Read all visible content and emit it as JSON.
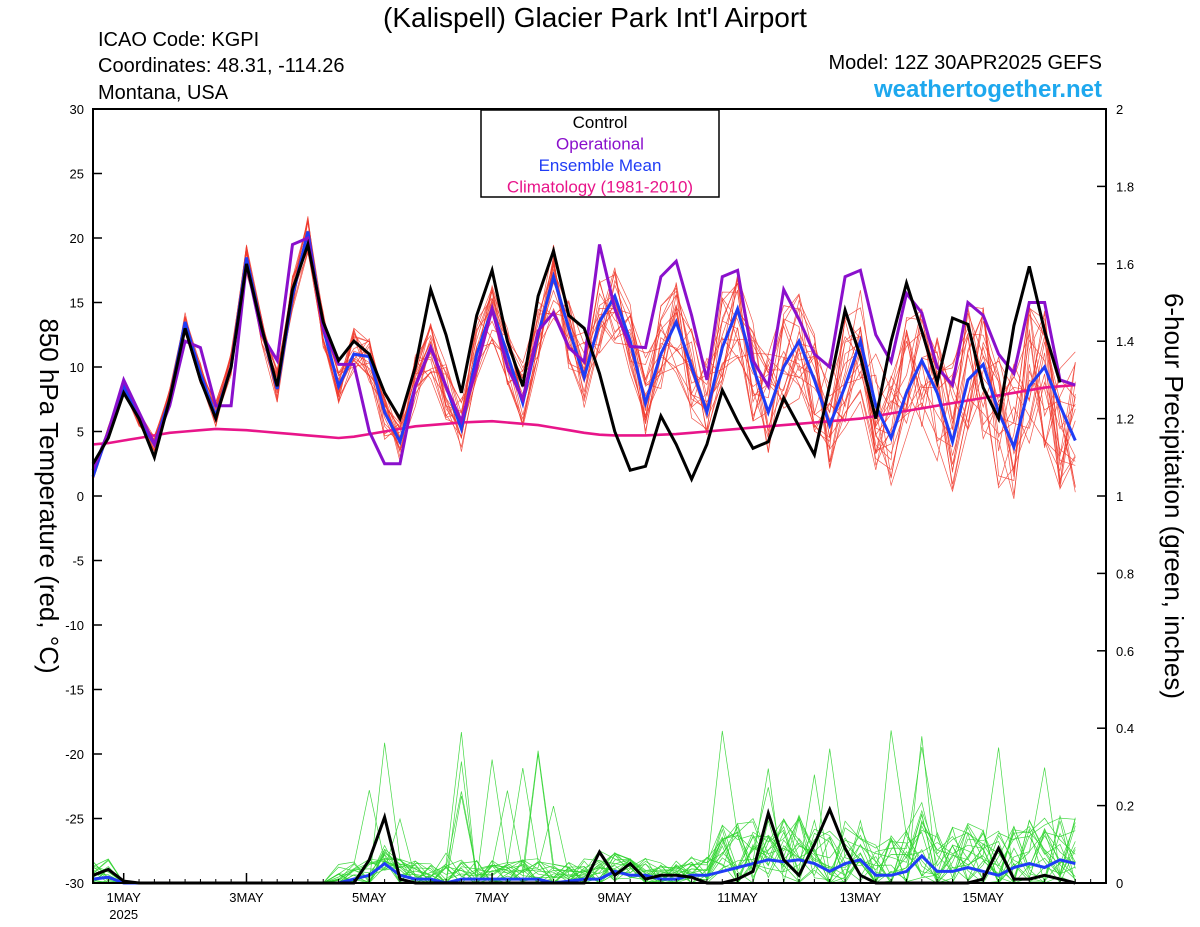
{
  "header": {
    "title": "(Kalispell) Glacier Park Int'l Airport",
    "icao": "ICAO Code: KGPI",
    "coordinates": "Coordinates: 48.31, -114.26",
    "region": "Montana, USA",
    "model": "Model: 12Z 30APR2025 GEFS",
    "site": "weathertogether.net"
  },
  "colors": {
    "control": "#000000",
    "operational": "#8a10cc",
    "ensemble_mean": "#1f3cf5",
    "climatology": "#e8158a",
    "members_temp": "#f0392d",
    "members_precip": "#2fd42f",
    "site": "#1ea8ee"
  },
  "legend": [
    {
      "label": "Control",
      "color": "#000000"
    },
    {
      "label": "Operational",
      "color": "#8a10cc"
    },
    {
      "label": "Ensemble Mean",
      "color": "#1f3cf5"
    },
    {
      "label": "Climatology (1981-2010)",
      "color": "#e8158a"
    }
  ],
  "chart_data": {
    "type": "line",
    "title": "(Kalispell) Glacier Park Int'l Airport",
    "ylabel_left": "850 hPa Temperature (red, °C)",
    "ylabel_right": "6-hour Precipitation (green, inches)",
    "ylim_left": [
      -30,
      30
    ],
    "ylim_right": [
      0,
      2
    ],
    "yticks_left": [
      "30",
      "25",
      "20",
      "15",
      "10",
      "5",
      "0",
      "-5",
      "-10",
      "-15",
      "-20",
      "-25",
      "-30"
    ],
    "yticks_right": [
      "2",
      "1.8",
      "1.6",
      "1.4",
      "1.2",
      "1",
      "0.8",
      "0.6",
      "0.4",
      "0.2",
      "0"
    ],
    "x_unit": "days since 30APR2025 12Z, 6-hour steps",
    "x_range": [
      0,
      16.5
    ],
    "xtick_labels": [
      {
        "x": 0.5,
        "label": "1MAY",
        "sub": "2025"
      },
      {
        "x": 2.5,
        "label": "3MAY"
      },
      {
        "x": 4.5,
        "label": "5MAY"
      },
      {
        "x": 6.5,
        "label": "7MAY"
      },
      {
        "x": 8.5,
        "label": "9MAY"
      },
      {
        "x": 10.5,
        "label": "11MAY"
      },
      {
        "x": 12.5,
        "label": "13MAY"
      },
      {
        "x": 14.5,
        "label": "15MAY"
      }
    ],
    "temperature": {
      "control": [
        2.5,
        4.5,
        8,
        6,
        3,
        7.5,
        13,
        9,
        6,
        10,
        18,
        13,
        8.5,
        16,
        19.5,
        13.5,
        10.5,
        12,
        11,
        8,
        6,
        10,
        16,
        12.5,
        8,
        14,
        17.5,
        12,
        8.5,
        15.5,
        19,
        14,
        13,
        9.5,
        5,
        2,
        2.3,
        6.2,
        4,
        1.3,
        4,
        8.2,
        5.8,
        3.7,
        4.2,
        7.6,
        5.4,
        3.2,
        8.6,
        14.4,
        10.8,
        6,
        12,
        16.5,
        12.8,
        8.8,
        13.8,
        13.3,
        8.4,
        6,
        13.2,
        17.8,
        12.8,
        8.8
      ],
      "operational": [
        2,
        5,
        9,
        6.5,
        4,
        7,
        12,
        11.5,
        7,
        7,
        18,
        12.5,
        10.5,
        19.5,
        20,
        13,
        10.2,
        10.2,
        5,
        2.5,
        2.5,
        8.5,
        11.5,
        8.5,
        5.8,
        10,
        14.5,
        10,
        7.5,
        12.8,
        14.2,
        11.5,
        10.4,
        19.5,
        14.5,
        11.6,
        11.5,
        17,
        18.2,
        14,
        9,
        17,
        17.5,
        10.5,
        8.5,
        16,
        13.7,
        11,
        10,
        17,
        17.5,
        12.5,
        10.4,
        15.7,
        14.2,
        10,
        8.6,
        15,
        14,
        11,
        9.5,
        15,
        15,
        9,
        8.6
      ],
      "mean": [
        1.5,
        5,
        8.5,
        6,
        4,
        7.5,
        13.5,
        9.5,
        6.2,
        10,
        18.5,
        13,
        8.3,
        15.5,
        20.5,
        13,
        8.5,
        11,
        10.8,
        6.5,
        4.2,
        8.5,
        11.5,
        8.5,
        5.2,
        11,
        14.5,
        11,
        7.2,
        12.5,
        17,
        13,
        9.2,
        13.5,
        15.5,
        12,
        7.2,
        11,
        13.5,
        10,
        6.5,
        11.5,
        14.5,
        10,
        6.5,
        10,
        12,
        9,
        5.5,
        8.5,
        12,
        7,
        4.5,
        8,
        10.5,
        8,
        4.2,
        9,
        10.2,
        6.5,
        3.8,
        8.5,
        10,
        7,
        4.3
      ],
      "climatology": [
        4,
        4.1,
        4.3,
        4.5,
        4.7,
        4.9,
        5.0,
        5.1,
        5.2,
        5.15,
        5.1,
        5.0,
        4.9,
        4.8,
        4.7,
        4.6,
        4.5,
        4.6,
        4.8,
        5.0,
        5.2,
        5.4,
        5.5,
        5.6,
        5.7,
        5.75,
        5.8,
        5.7,
        5.6,
        5.5,
        5.3,
        5.1,
        4.9,
        4.75,
        4.7,
        4.7,
        4.7,
        4.75,
        4.8,
        4.9,
        5.0,
        5.1,
        5.2,
        5.3,
        5.4,
        5.5,
        5.6,
        5.7,
        5.8,
        5.9,
        6.0,
        6.2,
        6.4,
        6.6,
        6.8,
        7.0,
        7.2,
        7.4,
        7.6,
        7.8,
        8.0,
        8.2,
        8.4,
        8.5,
        8.6
      ]
    },
    "precipitation": {
      "control": [
        0.02,
        0.035,
        0.005,
        0,
        0,
        0,
        0,
        0,
        0,
        0,
        0,
        0,
        0,
        0,
        0,
        0,
        0,
        0,
        0.06,
        0.17,
        0.01,
        0,
        0,
        0,
        0,
        0,
        0,
        0,
        0,
        0,
        0,
        0,
        0,
        0.08,
        0.02,
        0.05,
        0.01,
        0.02,
        0.02,
        0.015,
        0,
        0,
        0.01,
        0.03,
        0.18,
        0.06,
        0.02,
        0.1,
        0.19,
        0.09,
        0.02,
        0,
        0,
        0,
        0,
        0,
        0,
        0,
        0.01,
        0.09,
        0.01,
        0.01,
        0.02,
        0.01,
        0
      ],
      "mean": [
        0.01,
        0.015,
        0,
        0,
        0,
        0,
        0,
        0,
        0,
        0,
        0,
        0,
        0,
        0,
        0,
        0,
        0,
        0.01,
        0.02,
        0.05,
        0.02,
        0.01,
        0.01,
        0,
        0.01,
        0.01,
        0.01,
        0.01,
        0.01,
        0.01,
        0,
        0.005,
        0.01,
        0.01,
        0.03,
        0.02,
        0.02,
        0.01,
        0.01,
        0.02,
        0.02,
        0.03,
        0.04,
        0.05,
        0.06,
        0.055,
        0.06,
        0.05,
        0.03,
        0.05,
        0.06,
        0.02,
        0.02,
        0.03,
        0.07,
        0.03,
        0.03,
        0.04,
        0.03,
        0.02,
        0.04,
        0.05,
        0.04,
        0.06,
        0.05
      ]
    }
  }
}
